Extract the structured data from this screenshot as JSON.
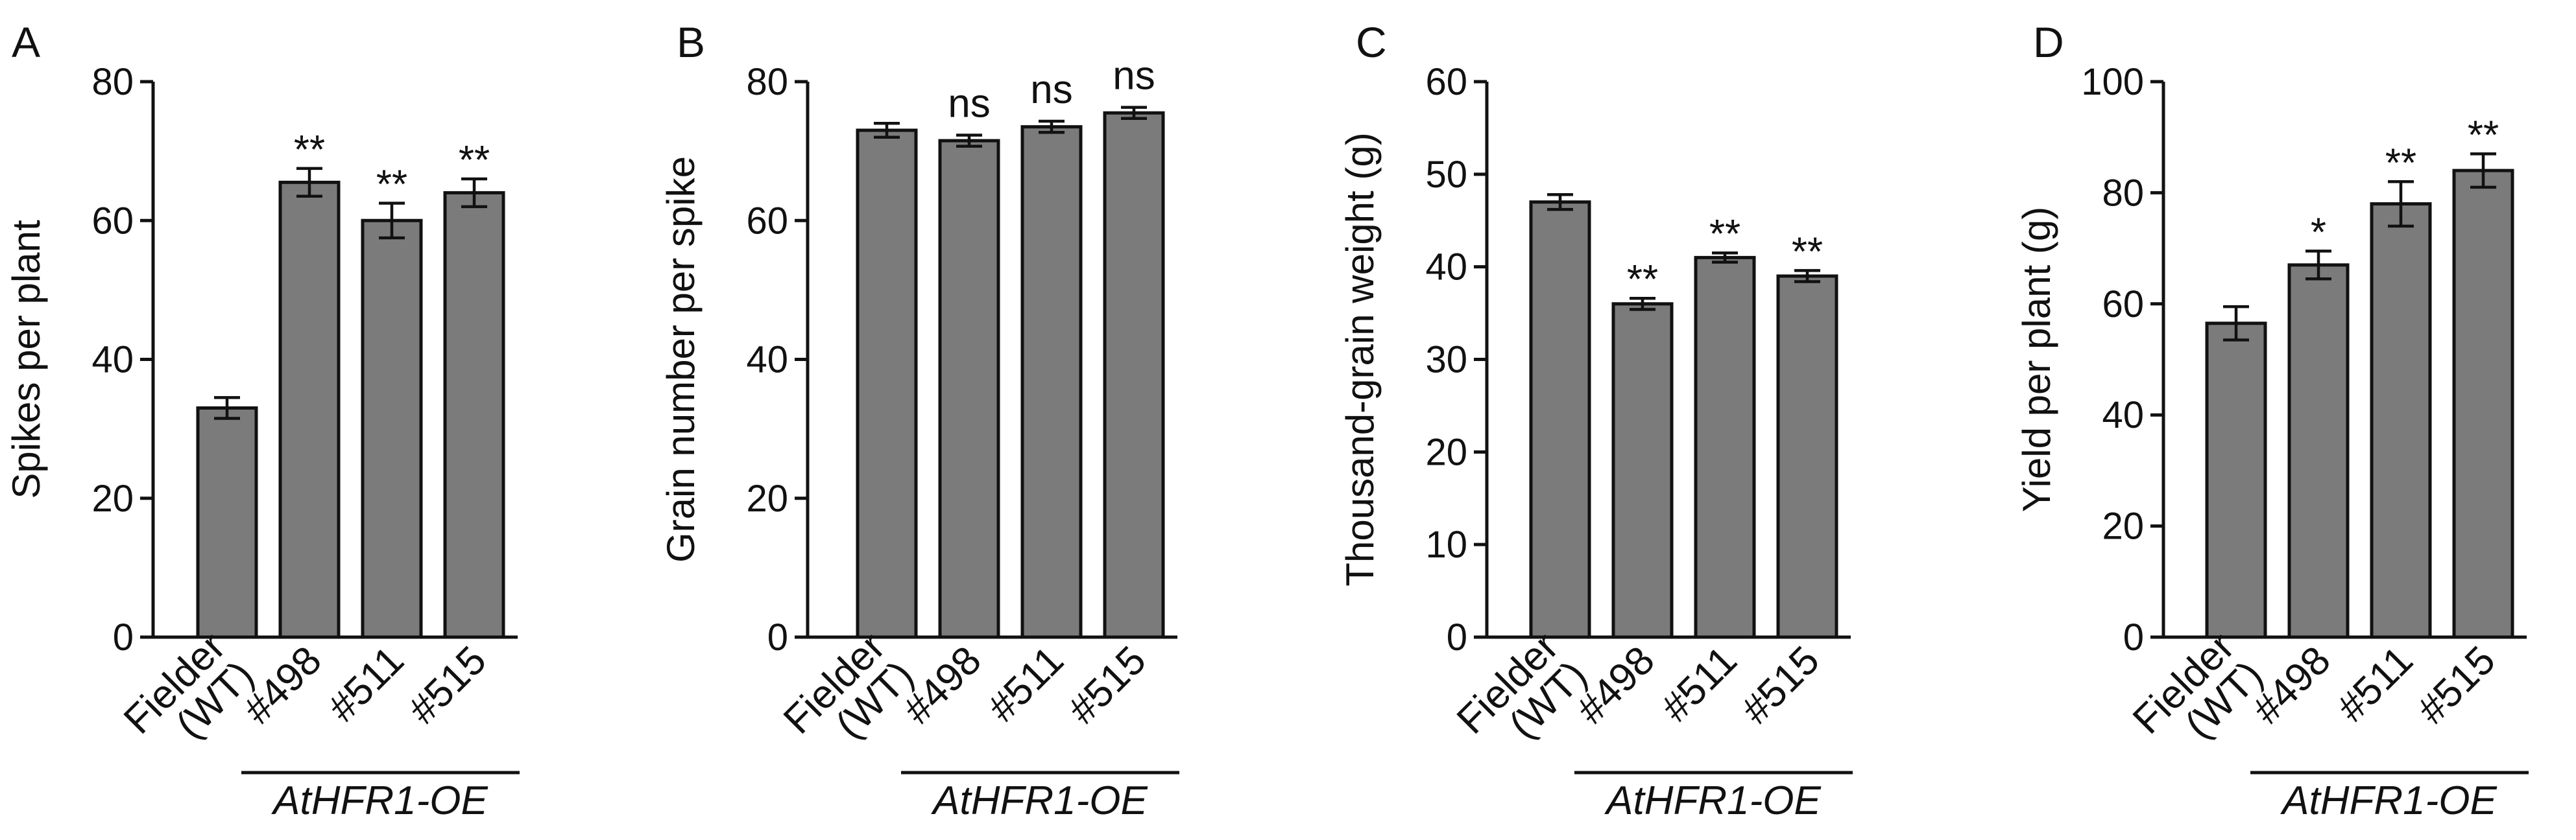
{
  "group_label": "AtHFR1-OE",
  "categories": [
    "Fielder\n(WT)",
    "#498",
    "#511",
    "#515"
  ],
  "colors": {
    "bar_fill": "#7b7b7b",
    "stroke": "#111111"
  },
  "chart_data": [
    {
      "panel": "A",
      "type": "bar",
      "ylabel": "Spikes per plant",
      "ylim": [
        0,
        80
      ],
      "yticks": [
        0,
        20,
        40,
        60,
        80
      ],
      "categories": [
        "Fielder\n(WT)",
        "#498",
        "#511",
        "#515"
      ],
      "values": [
        33,
        65.5,
        60,
        64
      ],
      "errors": [
        1.5,
        2,
        2.5,
        2
      ],
      "significance": [
        "",
        "**",
        "**",
        "**"
      ]
    },
    {
      "panel": "B",
      "type": "bar",
      "ylabel": "Grain number per spike",
      "ylim": [
        0,
        80
      ],
      "yticks": [
        0,
        20,
        40,
        60,
        80
      ],
      "categories": [
        "Fielder\n(WT)",
        "#498",
        "#511",
        "#515"
      ],
      "values": [
        73,
        71.5,
        73.5,
        75.5
      ],
      "errors": [
        1,
        0.8,
        0.8,
        0.8
      ],
      "significance": [
        "",
        "ns",
        "ns",
        "ns"
      ]
    },
    {
      "panel": "C",
      "type": "bar",
      "ylabel": "Thousand-grain weight (g)",
      "ylim": [
        0,
        60
      ],
      "yticks": [
        0,
        10,
        20,
        30,
        40,
        50,
        60
      ],
      "categories": [
        "Fielder\n(WT)",
        "#498",
        "#511",
        "#515"
      ],
      "values": [
        47,
        36,
        41,
        39
      ],
      "errors": [
        0.8,
        0.6,
        0.5,
        0.6
      ],
      "significance": [
        "",
        "**",
        "**",
        "**"
      ]
    },
    {
      "panel": "D",
      "type": "bar",
      "ylabel": "Yield per plant (g)",
      "ylim": [
        0,
        100
      ],
      "yticks": [
        0,
        20,
        40,
        60,
        80,
        100
      ],
      "categories": [
        "Fielder\n(WT)",
        "#498",
        "#511",
        "#515"
      ],
      "values": [
        56.5,
        67,
        78,
        84
      ],
      "errors": [
        3,
        2.5,
        4,
        3
      ],
      "significance": [
        "",
        "*",
        "**",
        "**"
      ]
    }
  ]
}
